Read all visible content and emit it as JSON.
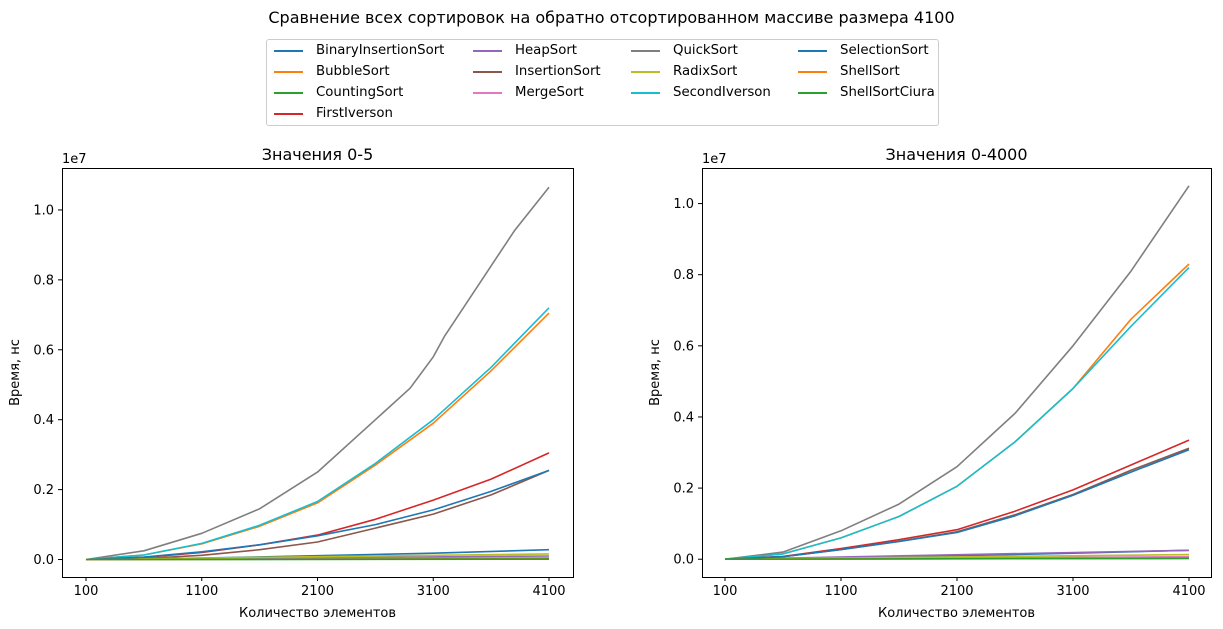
{
  "figure_title": "Сравнение всех сортировок на обратно отсортированном массиве размера 4100",
  "colors": {
    "tab_blue": "#1f77b4",
    "tab_orange": "#ff7f0e",
    "tab_green": "#2ca02c",
    "tab_red": "#d62728",
    "tab_purple": "#9467bd",
    "tab_brown": "#8c564b",
    "tab_pink": "#e377c2",
    "tab_gray": "#7f7f7f",
    "tab_olive": "#bcbd22",
    "tab_cyan": "#17becf"
  },
  "legend": [
    {
      "label": "BinaryInsertionSort",
      "color": "#1f77b4"
    },
    {
      "label": "BubbleSort",
      "color": "#ff7f0e"
    },
    {
      "label": "CountingSort",
      "color": "#2ca02c"
    },
    {
      "label": "FirstIverson",
      "color": "#d62728"
    },
    {
      "label": "HeapSort",
      "color": "#9467bd"
    },
    {
      "label": "InsertionSort",
      "color": "#8c564b"
    },
    {
      "label": "MergeSort",
      "color": "#e377c2"
    },
    {
      "label": "QuickSort",
      "color": "#7f7f7f"
    },
    {
      "label": "RadixSort",
      "color": "#bcbd22"
    },
    {
      "label": "SecondIverson",
      "color": "#17becf"
    },
    {
      "label": "SelectionSort",
      "color": "#1f77b4"
    },
    {
      "label": "ShellSort",
      "color": "#ff7f0e"
    },
    {
      "label": "ShellSortCiura",
      "color": "#2ca02c"
    }
  ],
  "chart_data": [
    {
      "type": "line",
      "title": "Значения 0-5",
      "xlabel": "Количество элементов",
      "ylabel": "Время, нс",
      "y_offset_label": "1e7",
      "xlim": [
        100,
        4100
      ],
      "ylim": [
        -0.5,
        11.2
      ],
      "y_scale_note": "y values in units of 1e6 ns",
      "xticks": [
        100,
        1100,
        2100,
        3100,
        4100
      ],
      "xtick_labels": [
        "100",
        "1100",
        "2100",
        "3100",
        "4100"
      ],
      "yticks": [
        0,
        2,
        4,
        6,
        8,
        10
      ],
      "ytick_labels": [
        "0.0",
        "0.2",
        "0.4",
        "0.6",
        "0.8",
        "1.0"
      ],
      "legend_placement": "shared legend above both plots",
      "grid": false,
      "series": [
        {
          "name": "BinaryInsertionSort",
          "color": "#1f77b4",
          "x": [
            100,
            1100,
            2100,
            3100,
            4100
          ],
          "y": [
            0,
            0.04,
            0.11,
            0.18,
            0.28
          ]
        },
        {
          "name": "BubbleSort",
          "color": "#ff7f0e",
          "x": [
            100,
            600,
            1100,
            1600,
            2100,
            2600,
            3100,
            3600,
            4100
          ],
          "y": [
            0,
            0.13,
            0.45,
            0.95,
            1.62,
            2.7,
            3.9,
            5.4,
            7.05
          ]
        },
        {
          "name": "CountingSort",
          "color": "#2ca02c",
          "x": [
            100,
            4100
          ],
          "y": [
            0,
            0.01
          ]
        },
        {
          "name": "FirstIverson",
          "color": "#d62728",
          "x": [
            100,
            600,
            1100,
            1600,
            2100,
            2600,
            3100,
            3600,
            4100
          ],
          "y": [
            0,
            0.06,
            0.2,
            0.42,
            0.7,
            1.15,
            1.7,
            2.3,
            3.05
          ]
        },
        {
          "name": "HeapSort",
          "color": "#9467bd",
          "x": [
            100,
            4100
          ],
          "y": [
            0,
            0.1
          ]
        },
        {
          "name": "InsertionSort",
          "color": "#8c564b",
          "x": [
            100,
            600,
            1100,
            1600,
            2100,
            2600,
            3100,
            3600,
            4100
          ],
          "y": [
            0,
            0.03,
            0.12,
            0.28,
            0.5,
            0.9,
            1.3,
            1.85,
            2.55
          ]
        },
        {
          "name": "MergeSort",
          "color": "#e377c2",
          "x": [
            100,
            4100
          ],
          "y": [
            0,
            0.05
          ]
        },
        {
          "name": "QuickSort",
          "color": "#7f7f7f",
          "x": [
            100,
            600,
            1100,
            1600,
            2100,
            2600,
            2900,
            3100,
            3200,
            3400,
            3600,
            3800,
            4100
          ],
          "y": [
            0,
            0.25,
            0.75,
            1.45,
            2.5,
            4.0,
            4.9,
            5.8,
            6.4,
            7.4,
            8.4,
            9.4,
            10.65
          ]
        },
        {
          "name": "RadixSort",
          "color": "#bcbd22",
          "x": [
            100,
            4100
          ],
          "y": [
            0,
            0.16
          ]
        },
        {
          "name": "SecondIverson",
          "color": "#17becf",
          "x": [
            100,
            600,
            1100,
            1600,
            2100,
            2600,
            3100,
            3600,
            4100
          ],
          "y": [
            0,
            0.13,
            0.46,
            0.98,
            1.66,
            2.75,
            4.0,
            5.5,
            7.2
          ]
        },
        {
          "name": "SelectionSort",
          "color": "#1f77b4",
          "x": [
            100,
            600,
            1100,
            1600,
            2100,
            2600,
            3100,
            3600,
            4100
          ],
          "y": [
            0,
            0.07,
            0.22,
            0.42,
            0.68,
            1.0,
            1.42,
            1.95,
            2.55
          ]
        },
        {
          "name": "ShellSort",
          "color": "#ff7f0e",
          "x": [
            100,
            4100
          ],
          "y": [
            0,
            0.02
          ]
        },
        {
          "name": "ShellSortCiura",
          "color": "#2ca02c",
          "x": [
            100,
            4100
          ],
          "y": [
            0,
            0.015
          ]
        }
      ]
    },
    {
      "type": "line",
      "title": "Значения 0-4000",
      "xlabel": "Количество элементов",
      "ylabel": "Время, нс",
      "y_offset_label": "1e7",
      "xlim": [
        100,
        4100
      ],
      "ylim": [
        -0.5,
        11.0
      ],
      "y_scale_note": "y values in units of 1e6 ns",
      "xticks": [
        100,
        1100,
        2100,
        3100,
        4100
      ],
      "xtick_labels": [
        "100",
        "1100",
        "2100",
        "3100",
        "4100"
      ],
      "yticks": [
        0,
        2,
        4,
        6,
        8,
        10
      ],
      "ytick_labels": [
        "0.0",
        "0.2",
        "0.4",
        "0.6",
        "0.8",
        "1.0"
      ],
      "legend_placement": "shared legend above both plots",
      "grid": false,
      "series": [
        {
          "name": "BinaryInsertionSort",
          "color": "#1f77b4",
          "x": [
            100,
            1100,
            2100,
            3100,
            4100
          ],
          "y": [
            0,
            0.04,
            0.1,
            0.17,
            0.25
          ]
        },
        {
          "name": "BubbleSort",
          "color": "#ff7f0e",
          "x": [
            100,
            600,
            1100,
            1600,
            2100,
            2600,
            3100,
            3600,
            4100
          ],
          "y": [
            0,
            0.15,
            0.6,
            1.2,
            2.05,
            3.3,
            4.8,
            6.75,
            8.3
          ]
        },
        {
          "name": "CountingSort",
          "color": "#2ca02c",
          "x": [
            100,
            4100
          ],
          "y": [
            0,
            0.02
          ]
        },
        {
          "name": "FirstIverson",
          "color": "#d62728",
          "x": [
            100,
            600,
            1100,
            1600,
            2100,
            2600,
            3100,
            3600,
            4100
          ],
          "y": [
            0,
            0.08,
            0.3,
            0.55,
            0.83,
            1.35,
            1.95,
            2.65,
            3.35
          ]
        },
        {
          "name": "HeapSort",
          "color": "#9467bd",
          "x": [
            100,
            4100
          ],
          "y": [
            0,
            0.25
          ]
        },
        {
          "name": "InsertionSort",
          "color": "#8c564b",
          "x": [
            100,
            600,
            1100,
            1600,
            2100,
            2600,
            3100,
            3600,
            4100
          ],
          "y": [
            0,
            0.07,
            0.27,
            0.5,
            0.77,
            1.25,
            1.82,
            2.5,
            3.12
          ]
        },
        {
          "name": "MergeSort",
          "color": "#e377c2",
          "x": [
            100,
            4100
          ],
          "y": [
            0,
            0.07
          ]
        },
        {
          "name": "QuickSort",
          "color": "#7f7f7f",
          "x": [
            100,
            600,
            1100,
            1600,
            2100,
            2600,
            3100,
            3600,
            4100
          ],
          "y": [
            0,
            0.2,
            0.8,
            1.55,
            2.6,
            4.1,
            6.0,
            8.1,
            10.5
          ]
        },
        {
          "name": "RadixSort",
          "color": "#bcbd22",
          "x": [
            100,
            4100
          ],
          "y": [
            0,
            0.13
          ]
        },
        {
          "name": "SecondIverson",
          "color": "#17becf",
          "x": [
            100,
            600,
            1100,
            1600,
            2100,
            2600,
            3100,
            3600,
            4100
          ],
          "y": [
            0,
            0.15,
            0.6,
            1.2,
            2.05,
            3.3,
            4.8,
            6.55,
            8.2
          ]
        },
        {
          "name": "SelectionSort",
          "color": "#1f77b4",
          "x": [
            100,
            600,
            1100,
            1600,
            2100,
            2600,
            3100,
            3600,
            4100
          ],
          "y": [
            0,
            0.07,
            0.27,
            0.5,
            0.75,
            1.22,
            1.8,
            2.45,
            3.08
          ]
        },
        {
          "name": "ShellSort",
          "color": "#ff7f0e",
          "x": [
            100,
            4100
          ],
          "y": [
            0,
            0.03
          ]
        },
        {
          "name": "ShellSortCiura",
          "color": "#2ca02c",
          "x": [
            100,
            4100
          ],
          "y": [
            0,
            0.025
          ]
        }
      ]
    }
  ]
}
